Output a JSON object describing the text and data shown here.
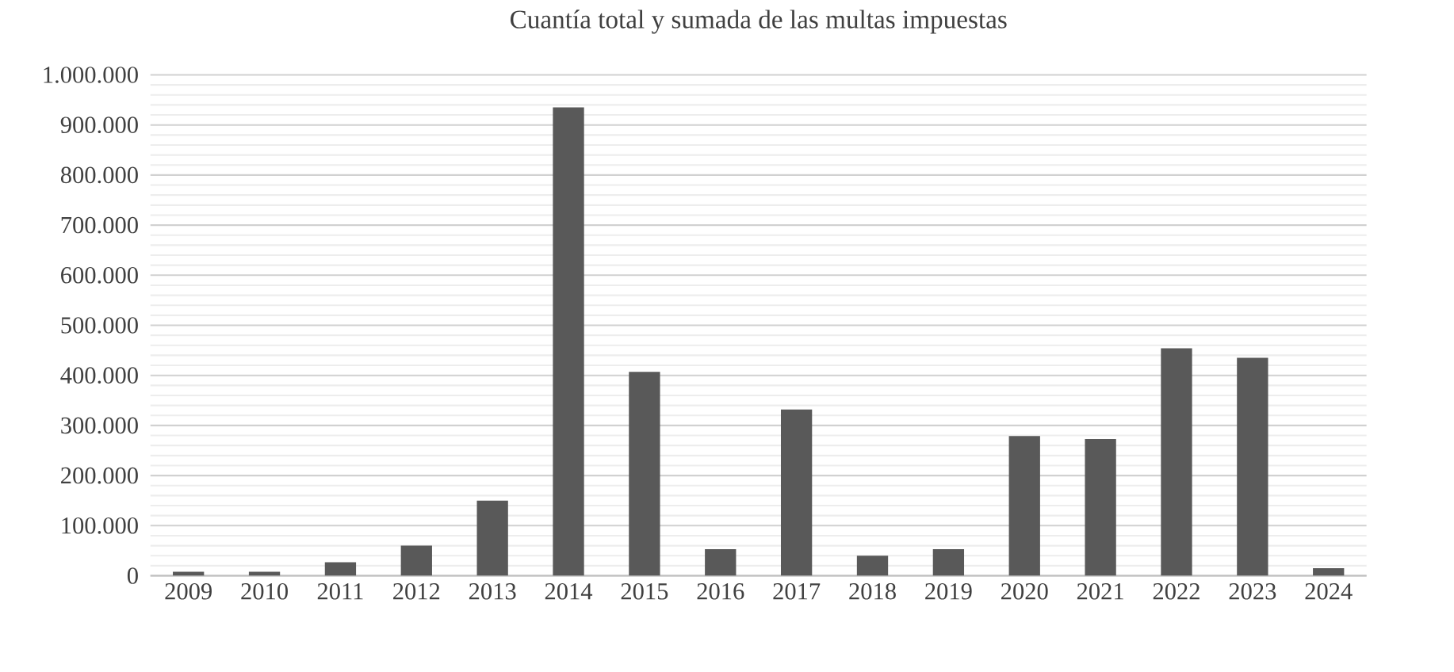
{
  "chart_data": {
    "type": "bar",
    "title": "Cuantía total y sumada de las multas impuestas",
    "categories": [
      "2009",
      "2010",
      "2011",
      "2012",
      "2013",
      "2014",
      "2015",
      "2016",
      "2017",
      "2018",
      "2019",
      "2020",
      "2021",
      "2022",
      "2023",
      "2024"
    ],
    "values": [
      8000,
      8000,
      27000,
      60000,
      150000,
      935000,
      407000,
      53000,
      332000,
      40000,
      53000,
      279000,
      273000,
      454000,
      435000,
      15000
    ],
    "color": "#595959",
    "ylim": [
      0,
      1000000
    ],
    "yticks": [
      {
        "value": 0,
        "label": "0"
      },
      {
        "value": 100000,
        "label": "100.000"
      },
      {
        "value": 200000,
        "label": "200.000"
      },
      {
        "value": 300000,
        "label": "300.000"
      },
      {
        "value": 400000,
        "label": "400.000"
      },
      {
        "value": 500000,
        "label": "500.000"
      },
      {
        "value": 600000,
        "label": "600.000"
      },
      {
        "value": 700000,
        "label": "700.000"
      },
      {
        "value": 800000,
        "label": "800.000"
      },
      {
        "value": 900000,
        "label": "900.000"
      },
      {
        "value": 1000000,
        "label": "1.000.000"
      }
    ],
    "grid": true
  }
}
